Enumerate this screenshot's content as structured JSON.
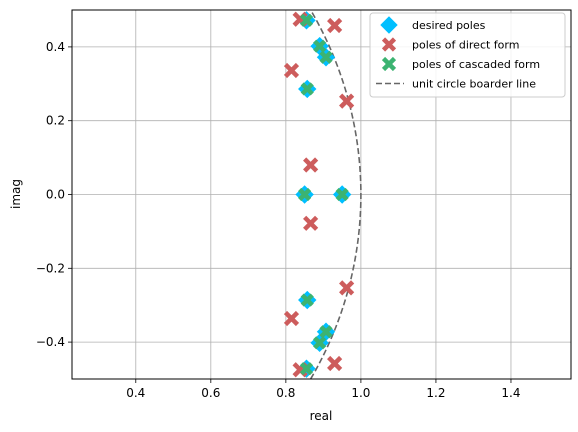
{
  "chart_data": {
    "type": "scatter",
    "xlabel": "real",
    "ylabel": "imag",
    "xlim": [
      0.23,
      1.56
    ],
    "ylim": [
      -0.5,
      0.5
    ],
    "xticks": [
      0.4,
      0.6,
      0.8,
      1.0,
      1.2,
      1.4
    ],
    "xtick_labels": [
      "0.4",
      "0.6",
      "0.8",
      "1.0",
      "1.2",
      "1.4"
    ],
    "yticks": [
      -0.4,
      -0.2,
      0.0,
      0.2,
      0.4
    ],
    "ytick_labels": [
      "−0.4",
      "−0.2",
      "0.0",
      "0.2",
      "0.4"
    ],
    "grid": true,
    "legend_position": "top-right",
    "series": [
      {
        "name": "desired poles",
        "marker": "diamond",
        "color": "#00bfff",
        "points": [
          {
            "x": 0.855,
            "y": 0.472
          },
          {
            "x": 0.855,
            "y": -0.472
          },
          {
            "x": 0.89,
            "y": 0.402
          },
          {
            "x": 0.89,
            "y": -0.402
          },
          {
            "x": 0.907,
            "y": 0.372
          },
          {
            "x": 0.907,
            "y": -0.372
          },
          {
            "x": 0.857,
            "y": 0.286
          },
          {
            "x": 0.857,
            "y": -0.286
          },
          {
            "x": 0.85,
            "y": 0.0
          },
          {
            "x": 0.95,
            "y": 0.0
          }
        ]
      },
      {
        "name": "poles of direct form",
        "marker": "x",
        "color": "#cd5c5c",
        "points": [
          {
            "x": 0.838,
            "y": 0.475
          },
          {
            "x": 0.838,
            "y": -0.475
          },
          {
            "x": 0.93,
            "y": 0.458
          },
          {
            "x": 0.93,
            "y": -0.458
          },
          {
            "x": 0.815,
            "y": 0.336
          },
          {
            "x": 0.815,
            "y": -0.336
          },
          {
            "x": 0.962,
            "y": 0.253
          },
          {
            "x": 0.962,
            "y": -0.253
          },
          {
            "x": 0.866,
            "y": 0.08
          },
          {
            "x": 0.866,
            "y": -0.078
          }
        ]
      },
      {
        "name": "poles of cascaded form",
        "marker": "x",
        "color": "#3cb371",
        "points": [
          {
            "x": 0.855,
            "y": 0.472
          },
          {
            "x": 0.855,
            "y": -0.472
          },
          {
            "x": 0.89,
            "y": 0.402
          },
          {
            "x": 0.89,
            "y": -0.402
          },
          {
            "x": 0.907,
            "y": 0.372
          },
          {
            "x": 0.907,
            "y": -0.372
          },
          {
            "x": 0.857,
            "y": 0.286
          },
          {
            "x": 0.857,
            "y": -0.286
          },
          {
            "x": 0.85,
            "y": 0.0
          },
          {
            "x": 0.95,
            "y": 0.0
          }
        ]
      },
      {
        "name": "unit circle boarder line",
        "style": "dashed-line",
        "color": "#666666",
        "curve": "unit circle"
      }
    ]
  }
}
